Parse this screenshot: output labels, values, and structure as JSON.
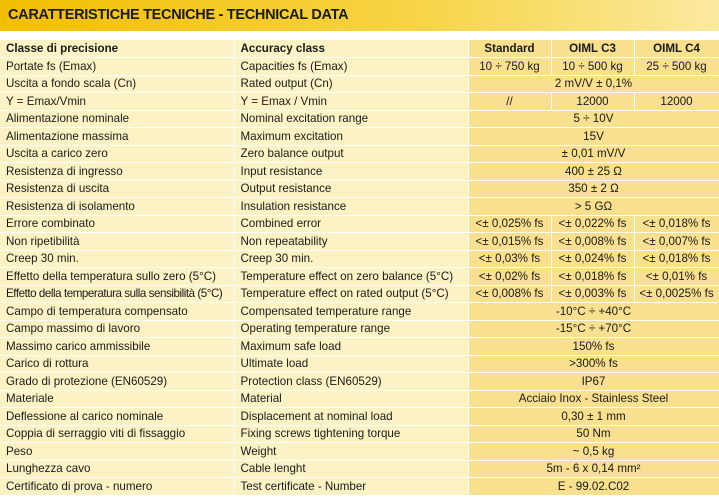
{
  "title": "CARATTERISTICHE TECNICHE - TECHNICAL DATA",
  "table": {
    "header": [
      "Classe di precisione",
      "Accuracy class",
      "Standard",
      "OIML C3",
      "OIML C4"
    ],
    "rows": [
      {
        "it": "Portate fs (Emax)",
        "en": "Capacities fs (Emax)",
        "values": [
          "10 ÷ 750 kg",
          "10 ÷ 500 kg",
          "25 ÷ 500 kg"
        ]
      },
      {
        "it": "Uscita a fondo scala (Cn)",
        "en": "Rated output (Cn)",
        "values": [
          "2 mV/V ± 0,1%"
        ]
      },
      {
        "it": "Y = Emax/Vmin",
        "en": "Y = Emax / Vmin",
        "values": [
          "//",
          "12000",
          "12000"
        ]
      },
      {
        "it": "Alimentazione nominale",
        "en": "Nominal excitation range",
        "values": [
          "5 ÷ 10V"
        ]
      },
      {
        "it": "Alimentazione massima",
        "en": "Maximum excitation",
        "values": [
          "15V"
        ]
      },
      {
        "it": "Uscita a carico zero",
        "en": "Zero balance output",
        "values": [
          "± 0,01 mV/V"
        ]
      },
      {
        "it": "Resistenza di ingresso",
        "en": "Input resistance",
        "values": [
          "400 ± 25 Ω"
        ]
      },
      {
        "it": "Resistenza di uscita",
        "en": "Output resistance",
        "values": [
          "350 ± 2 Ω"
        ]
      },
      {
        "it": "Resistenza di isolamento",
        "en": "Insulation resistance",
        "values": [
          "> 5 GΩ"
        ]
      },
      {
        "it": "Errore combinato",
        "en": "Combined error",
        "values": [
          "<± 0,025% fs",
          "<± 0,022% fs",
          "<± 0,018% fs"
        ]
      },
      {
        "it": "Non ripetibilità",
        "en": "Non repeatability",
        "values": [
          "<± 0,015% fs",
          "<± 0,008% fs",
          "<± 0,007% fs"
        ]
      },
      {
        "it": "Creep 30 min.",
        "en": "Creep 30 min.",
        "values": [
          "<± 0,03% fs",
          "<± 0,024% fs",
          "<± 0,018% fs"
        ]
      },
      {
        "it": "Effetto della temperatura sullo zero (5°C)",
        "en": "Temperature effect on zero balance (5°C)",
        "values": [
          "<± 0,02% fs",
          "<± 0,018% fs",
          "<± 0,01% fs"
        ]
      },
      {
        "it": "Effetto della temperatura sulla sensibilità (5°C)",
        "en": "Temperature effect on rated output (5°C)",
        "values": [
          "<± 0,008% fs",
          "<± 0,003% fs",
          "<± 0,0025% fs"
        ]
      },
      {
        "it": "Campo di temperatura compensato",
        "en": "Compensated temperature range",
        "values": [
          "-10°C ÷ +40°C"
        ]
      },
      {
        "it": "Campo massimo di lavoro",
        "en": "Operating temperature range",
        "values": [
          "-15°C ÷ +70°C"
        ]
      },
      {
        "it": "Massimo carico ammissibile",
        "en": "Maximum safe load",
        "values": [
          "150% fs"
        ]
      },
      {
        "it": "Carico di rottura",
        "en": "Ultimate load",
        "values": [
          ">300% fs"
        ]
      },
      {
        "it": "Grado di protezione (EN60529)",
        "en": "Protection class (EN60529)",
        "values": [
          "IP67"
        ]
      },
      {
        "it": "Materiale",
        "en": "Material",
        "values": [
          "Acciaio Inox - Stainless Steel"
        ]
      },
      {
        "it": "Deflessione al carico nominale",
        "en": "Displacement at nominal load",
        "values": [
          "0,30 ± 1 mm"
        ]
      },
      {
        "it": "Coppia di serraggio viti di fissaggio",
        "en": "Fixing screws tightening torque",
        "values": [
          "50 Nm"
        ]
      },
      {
        "it": "Peso",
        "en": "Weight",
        "values": [
          "~ 0,5 kg"
        ]
      },
      {
        "it": "Lunghezza cavo",
        "en": "Cable lenght",
        "values": [
          "5m - 6 x 0,14 mm²"
        ]
      },
      {
        "it": "Certificato di prova - numero",
        "en": "Test certificate - Number",
        "values": [
          "E - 99.02.C02"
        ]
      }
    ]
  }
}
